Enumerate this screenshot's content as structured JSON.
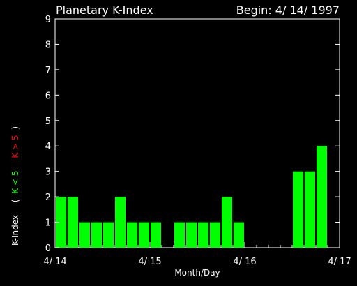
{
  "chart_data": {
    "type": "bar",
    "title": "Planetary K-Index",
    "begin_label": "Begin: 4/ 14/ 1997",
    "xlabel": "Month/Day",
    "ylabel": {
      "prefix": "K-Index",
      "open": "(",
      "low": "K < 5",
      "high": "K > 5",
      "close": ")"
    },
    "ylim": [
      0,
      9
    ],
    "y_ticks": [
      "0",
      "1",
      "2",
      "3",
      "4",
      "5",
      "6",
      "7",
      "8",
      "9"
    ],
    "x_ticks": [
      {
        "label": "4/ 14",
        "day": 0
      },
      {
        "label": "4/ 15",
        "day": 1
      },
      {
        "label": "4/ 16",
        "day": 2
      },
      {
        "label": "4/ 17",
        "day": 3
      }
    ],
    "bins_per_day": 8,
    "values": [
      2,
      2,
      1,
      1,
      1,
      2,
      1,
      1,
      1,
      0,
      1,
      1,
      1,
      1,
      2,
      1,
      0,
      0,
      0,
      0,
      3,
      3,
      4,
      0
    ],
    "colors": {
      "background": "#000000",
      "axes": "#ffffff",
      "low": "#00ff00",
      "high": "#ff0000"
    }
  }
}
